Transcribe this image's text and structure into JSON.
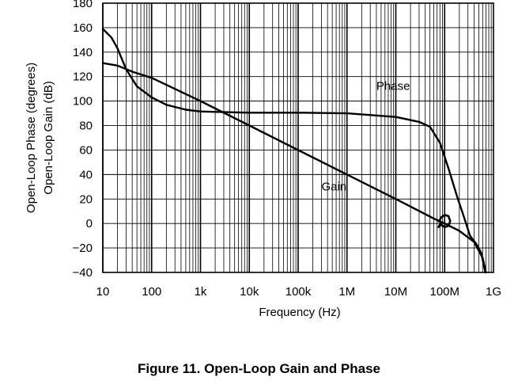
{
  "figure_caption": "Figure 11. Open-Loop Gain and Phase",
  "chart_data": {
    "type": "line",
    "title": "",
    "xlabel": "Frequency (Hz)",
    "ylabel_lines": [
      "Open-Loop Phase (degrees)",
      "Open-Loop Gain (dB)"
    ],
    "x_scale": "log",
    "xlim": [
      10,
      1000000000
    ],
    "ylim": [
      -40,
      180
    ],
    "grid": true,
    "x_ticks": [
      {
        "value": 10,
        "label": "10"
      },
      {
        "value": 100,
        "label": "100"
      },
      {
        "value": 1000,
        "label": "1k"
      },
      {
        "value": 10000,
        "label": "10k"
      },
      {
        "value": 100000,
        "label": "100k"
      },
      {
        "value": 1000000,
        "label": "1M"
      },
      {
        "value": 10000000,
        "label": "10M"
      },
      {
        "value": 100000000,
        "label": "100M"
      },
      {
        "value": 1000000000,
        "label": "1G"
      }
    ],
    "y_ticks": [
      {
        "value": -40,
        "label": "−40"
      },
      {
        "value": -20,
        "label": "−20"
      },
      {
        "value": 0,
        "label": "0"
      },
      {
        "value": 20,
        "label": "20"
      },
      {
        "value": 40,
        "label": "40"
      },
      {
        "value": 60,
        "label": "60"
      },
      {
        "value": 80,
        "label": "80"
      },
      {
        "value": 100,
        "label": "100"
      },
      {
        "value": 120,
        "label": "120"
      },
      {
        "value": 140,
        "label": "140"
      },
      {
        "value": 160,
        "label": "160"
      },
      {
        "value": 180,
        "label": "180"
      }
    ],
    "series": [
      {
        "name": "Gain",
        "label_at": {
          "x": 300000,
          "y": 27
        },
        "points": [
          [
            10,
            131
          ],
          [
            20,
            129
          ],
          [
            40,
            124
          ],
          [
            100,
            119
          ],
          [
            1000,
            100
          ],
          [
            10000,
            80
          ],
          [
            100000,
            60
          ],
          [
            1000000,
            40
          ],
          [
            10000000,
            20
          ],
          [
            60000000,
            4
          ],
          [
            100000000,
            0
          ],
          [
            200000000,
            -6
          ],
          [
            400000000,
            -15
          ],
          [
            600000000,
            -28
          ],
          [
            700000000,
            -40
          ]
        ]
      },
      {
        "name": "Phase",
        "label_at": {
          "x": 4000000,
          "y": 109
        },
        "points": [
          [
            10,
            159
          ],
          [
            15,
            152
          ],
          [
            20,
            143
          ],
          [
            30,
            126
          ],
          [
            50,
            112
          ],
          [
            100,
            103
          ],
          [
            200,
            97
          ],
          [
            500,
            93
          ],
          [
            1000,
            91.5
          ],
          [
            10000,
            90.5
          ],
          [
            100000,
            90.5
          ],
          [
            1000000,
            90
          ],
          [
            10000000,
            87
          ],
          [
            30000000,
            83
          ],
          [
            50000000,
            79
          ],
          [
            80000000,
            66
          ],
          [
            120000000,
            45
          ],
          [
            180000000,
            22
          ],
          [
            250000000,
            5
          ],
          [
            330000000,
            -10
          ],
          [
            450000000,
            -17
          ],
          [
            560000000,
            -24
          ],
          [
            680000000,
            -40
          ]
        ]
      }
    ],
    "loop_marker": {
      "points": [
        [
          75000000,
          1
        ],
        [
          85000000,
          5
        ],
        [
          100000000,
          7
        ],
        [
          120000000,
          6
        ],
        [
          130000000,
          2
        ],
        [
          120000000,
          -2
        ],
        [
          100000000,
          -3
        ],
        [
          85000000,
          -1
        ],
        [
          75000000,
          -3
        ],
        [
          85000000,
          1
        ]
      ]
    }
  }
}
